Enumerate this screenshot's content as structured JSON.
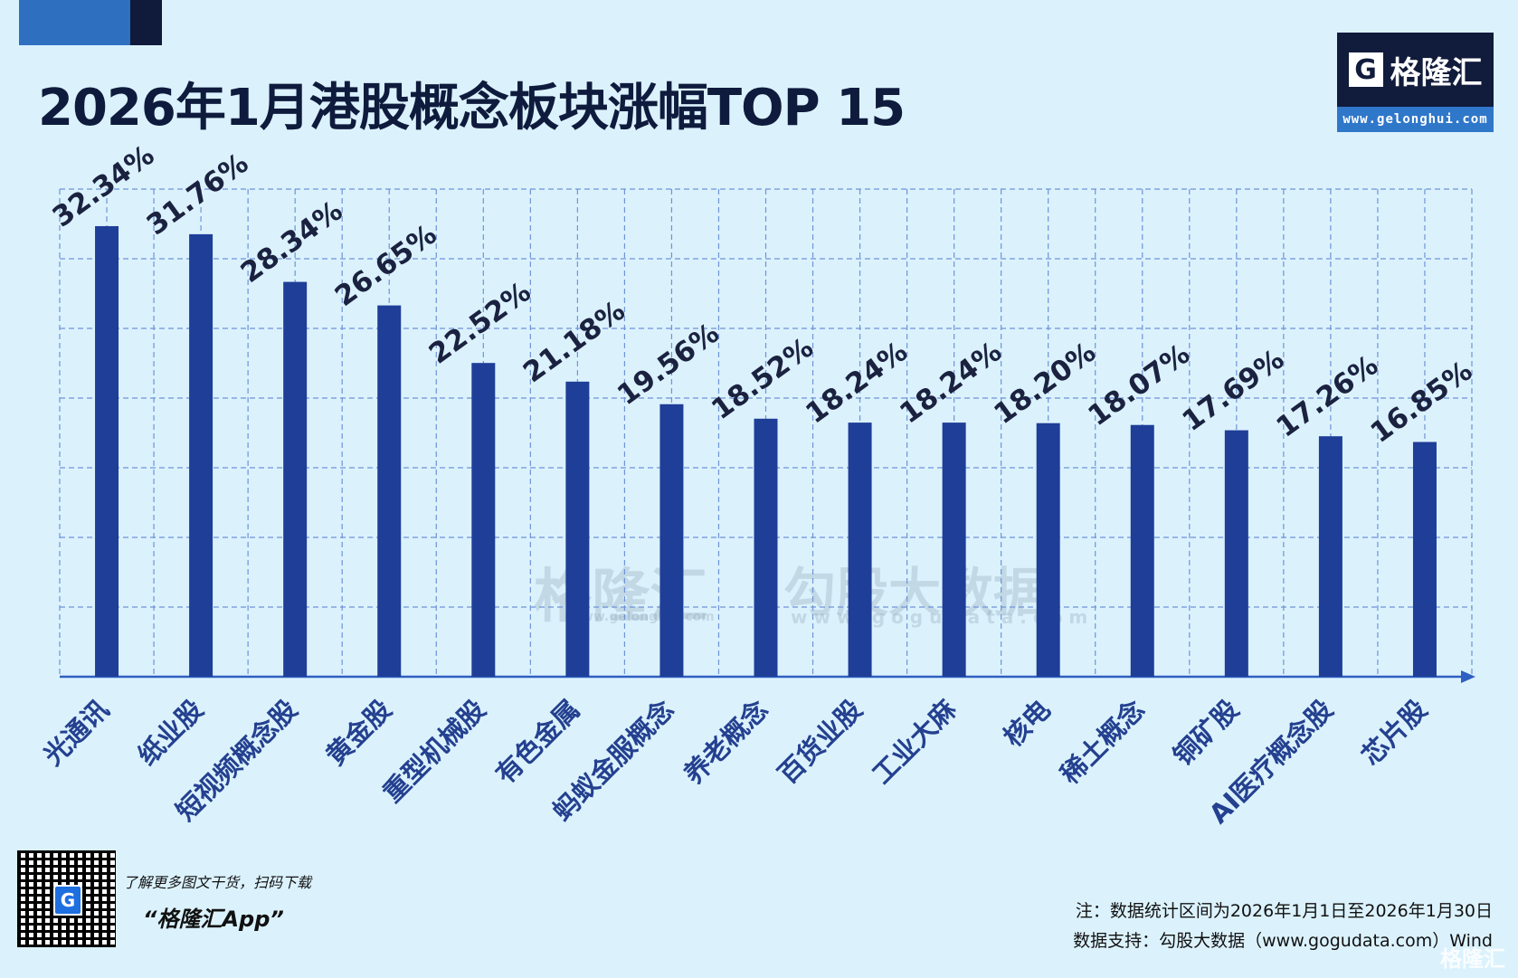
{
  "header": {
    "title": "2026年1月港股概念板块涨幅TOP 15"
  },
  "logo": {
    "icon": "gelonghui-g-logo",
    "name": "格隆汇",
    "url": "www.gelonghui.com"
  },
  "watermark": {
    "left_name": "格隆汇",
    "left_url": "www.gelonghui.com",
    "right_name": "勾股大数据",
    "right_url": "www.gogudata.com"
  },
  "chart_data": {
    "type": "bar",
    "title": "2026年1月港股概念板块涨幅TOP 15",
    "categories": [
      "光通讯",
      "纸业股",
      "短视频概念股",
      "黄金股",
      "重型机械股",
      "有色金属",
      "蚂蚁金服概念",
      "养老概念",
      "百货业股",
      "工业大麻",
      "核电",
      "稀土概念",
      "铜矿股",
      "AI医疗概念股",
      "芯片股"
    ],
    "values": [
      32.34,
      31.76,
      28.34,
      26.65,
      22.52,
      21.18,
      19.56,
      18.52,
      18.24,
      18.24,
      18.2,
      18.07,
      17.69,
      17.26,
      16.85
    ],
    "value_labels": [
      "32.34%",
      "31.76%",
      "28.34%",
      "26.65%",
      "22.52%",
      "21.18%",
      "19.56%",
      "18.52%",
      "18.24%",
      "18.24%",
      "18.20%",
      "18.07%",
      "17.69%",
      "17.26%",
      "16.85%"
    ],
    "xlabel": "",
    "ylabel": "",
    "ylim": [
      0,
      35
    ],
    "grid": true,
    "y_tick_labels_shown": false,
    "colors": {
      "bar": "#1f3e98",
      "grid": "#6f93d8",
      "axis": "#2f5fc0",
      "background": "#dbf2fd"
    }
  },
  "footer": {
    "qr_icon": "qr-code",
    "promo_line": "了解更多图文干货，扫码下载",
    "app_name": "“格隆汇App”",
    "note": "注：数据统计区间为2026年1月1日至2026年1月30日",
    "source": "数据支持：勾股大数据（www.gogudata.com）Wind",
    "corner_watermark": "格隆汇"
  }
}
